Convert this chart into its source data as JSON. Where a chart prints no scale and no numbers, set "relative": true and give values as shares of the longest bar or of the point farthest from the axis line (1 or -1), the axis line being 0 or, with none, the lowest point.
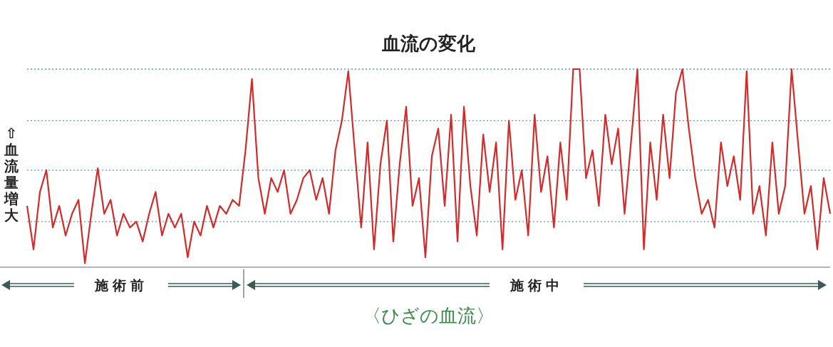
{
  "chart_data": {
    "type": "line",
    "title": "血流の変化",
    "ylabel": "⇧血流量増大",
    "relative": true,
    "marker": "none",
    "line_style": "solid",
    "ref_lines": [
      {
        "axis": "y",
        "value": 1,
        "color": "#4aa0c8",
        "line_style": "dotted"
      },
      {
        "axis": "y",
        "value": 0.74,
        "color": "#4aa0c8",
        "line_style": "dotted"
      },
      {
        "axis": "y",
        "value": 0.49,
        "color": "#4aa0c8",
        "line_style": "dotted"
      },
      {
        "axis": "y",
        "value": 0.23,
        "color": "#4aa0c8",
        "line_style": "dotted"
      }
    ],
    "annotations": [
      "施術前",
      "施術中",
      "〈ひざの血流〉"
    ],
    "categories": [
      null,
      null,
      null,
      null,
      null,
      null,
      null,
      null,
      null,
      null,
      null,
      null,
      null,
      null,
      null,
      null,
      null,
      null,
      null,
      null,
      null,
      null,
      null,
      null,
      null,
      null,
      null,
      null,
      null,
      null,
      null,
      null,
      null,
      null,
      null,
      null,
      null,
      null,
      null,
      null,
      null,
      null,
      null,
      null,
      null,
      null,
      null,
      null,
      null,
      null,
      null,
      null,
      null,
      null,
      null,
      null,
      null,
      null,
      null,
      null,
      null,
      null,
      null,
      null,
      null,
      null,
      null,
      null,
      null,
      null,
      null,
      null,
      null,
      null,
      null,
      null,
      null,
      null,
      null,
      null,
      null,
      null,
      null,
      null,
      null,
      null,
      null,
      null,
      null,
      null,
      null,
      null,
      null,
      null,
      null,
      null,
      null,
      null,
      null,
      null,
      null,
      null,
      null,
      null,
      null,
      null,
      null,
      null,
      null,
      null,
      null,
      null,
      null,
      null,
      null,
      null,
      null,
      null,
      null,
      null,
      null,
      null,
      null,
      null,
      null,
      null
    ],
    "series": [
      {
        "color": "#d42a2a",
        "values": [
          0.31,
          0.09,
          0.38,
          0.49,
          0.2,
          0.31,
          0.16,
          0.27,
          0.34,
          0.02,
          0.27,
          0.5,
          0.27,
          0.34,
          0.16,
          0.27,
          0.2,
          0.23,
          0.13,
          0.27,
          0.38,
          0.16,
          0.27,
          0.2,
          0.27,
          0.05,
          0.23,
          0.16,
          0.31,
          0.2,
          0.31,
          0.27,
          0.34,
          0.31,
          0.59,
          0.95,
          0.45,
          0.27,
          0.45,
          0.38,
          0.49,
          0.27,
          0.34,
          0.45,
          0.49,
          0.34,
          0.45,
          0.27,
          0.59,
          0.74,
          0.99,
          0.59,
          0.2,
          0.63,
          0.09,
          0.52,
          0.74,
          0.13,
          0.52,
          0.81,
          0.31,
          0.45,
          0.05,
          0.56,
          0.7,
          0.31,
          0.77,
          0.13,
          0.81,
          0.41,
          0.16,
          0.67,
          0.38,
          0.63,
          0.09,
          0.74,
          0.34,
          0.49,
          0.16,
          0.77,
          0.38,
          0.56,
          0.2,
          0.63,
          0.34,
          1,
          1,
          0.45,
          0.59,
          0.31,
          0.77,
          0.52,
          0.7,
          0.27,
          0.63,
          1,
          0.09,
          0.63,
          0.34,
          0.77,
          0.45,
          0.88,
          1,
          0.7,
          0.45,
          0.27,
          0.34,
          0.2,
          0.63,
          0.41,
          0.56,
          0.34,
          0.99,
          0.27,
          0.41,
          0.16,
          0.63,
          0.27,
          0.41,
          1,
          0.63,
          0.27,
          0.41,
          0.09,
          0.45,
          0.27
        ]
      }
    ]
  }
}
